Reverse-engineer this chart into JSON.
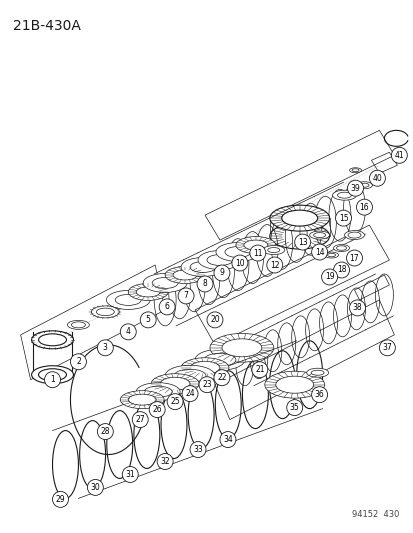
{
  "title": "21B-430A",
  "watermark": "94152  430",
  "bg_color": "#ffffff",
  "line_color": "#1a1a1a",
  "fig_width": 4.14,
  "fig_height": 5.33,
  "dpi": 100
}
